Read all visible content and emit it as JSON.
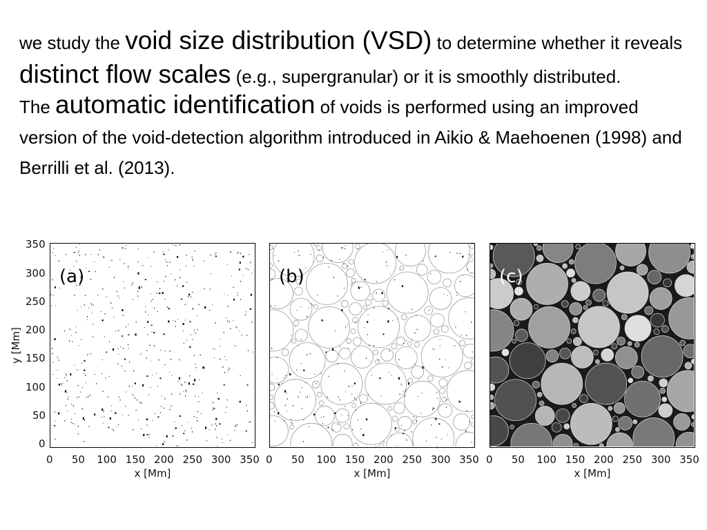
{
  "text": {
    "p1": {
      "a": "we study the",
      "b": "void size distribution (VSD)",
      "c": "to determine whether it reveals",
      "d": "distinct flow scales",
      "e": "(e.g., supergranular) or it is smoothly distributed."
    },
    "p2": {
      "a": "The",
      "b": "automatic identification",
      "c": "of voids is performed using an improved version of the void-detection algorithm introduced in Aikio & Maehoenen (1998) and Berrilli et al. (2013)."
    }
  },
  "figure": {
    "panels": [
      {
        "label": "(a)",
        "style": "magnetogram"
      },
      {
        "label": "(b)",
        "style": "voids-outline"
      },
      {
        "label": "(c)",
        "style": "voids-filled"
      }
    ],
    "x_ticks": [
      "0",
      "50",
      "100",
      "150",
      "200",
      "250",
      "300",
      "350"
    ],
    "y_ticks": [
      "0",
      "50",
      "100",
      "150",
      "200",
      "250",
      "300",
      "350"
    ],
    "x_axis_label": "x [Mm]",
    "y_axis_label": "y [Mm]",
    "axis_range": [
      0,
      360
    ],
    "colors": {
      "background": "#ffffff",
      "ink": "#000000",
      "panel_c_bg": "#1a1a1a"
    }
  }
}
